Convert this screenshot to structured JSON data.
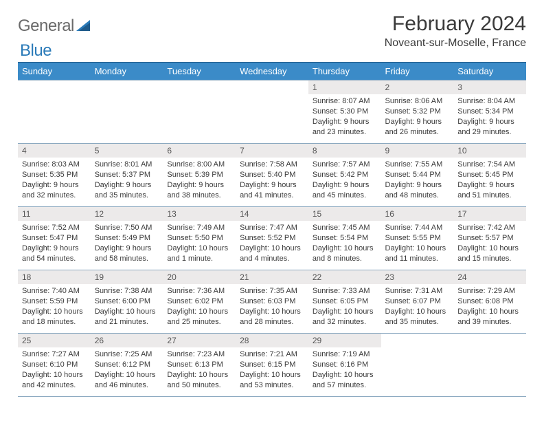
{
  "logo": {
    "word1": "General",
    "word2": "Blue"
  },
  "title": "February 2024",
  "location": "Noveant-sur-Moselle, France",
  "colors": {
    "header_bg": "#3b8bc8",
    "header_border": "#1f5a8a",
    "cell_border": "#8aa8c0",
    "daynum_bg": "#eceaea",
    "logo_gray": "#6a6a6a",
    "logo_blue": "#2a7ab8"
  },
  "weekdays": [
    "Sunday",
    "Monday",
    "Tuesday",
    "Wednesday",
    "Thursday",
    "Friday",
    "Saturday"
  ],
  "weeks": [
    [
      null,
      null,
      null,
      null,
      {
        "n": "1",
        "sr": "8:07 AM",
        "ss": "5:30 PM",
        "dl": "9 hours and 23 minutes."
      },
      {
        "n": "2",
        "sr": "8:06 AM",
        "ss": "5:32 PM",
        "dl": "9 hours and 26 minutes."
      },
      {
        "n": "3",
        "sr": "8:04 AM",
        "ss": "5:34 PM",
        "dl": "9 hours and 29 minutes."
      }
    ],
    [
      {
        "n": "4",
        "sr": "8:03 AM",
        "ss": "5:35 PM",
        "dl": "9 hours and 32 minutes."
      },
      {
        "n": "5",
        "sr": "8:01 AM",
        "ss": "5:37 PM",
        "dl": "9 hours and 35 minutes."
      },
      {
        "n": "6",
        "sr": "8:00 AM",
        "ss": "5:39 PM",
        "dl": "9 hours and 38 minutes."
      },
      {
        "n": "7",
        "sr": "7:58 AM",
        "ss": "5:40 PM",
        "dl": "9 hours and 41 minutes."
      },
      {
        "n": "8",
        "sr": "7:57 AM",
        "ss": "5:42 PM",
        "dl": "9 hours and 45 minutes."
      },
      {
        "n": "9",
        "sr": "7:55 AM",
        "ss": "5:44 PM",
        "dl": "9 hours and 48 minutes."
      },
      {
        "n": "10",
        "sr": "7:54 AM",
        "ss": "5:45 PM",
        "dl": "9 hours and 51 minutes."
      }
    ],
    [
      {
        "n": "11",
        "sr": "7:52 AM",
        "ss": "5:47 PM",
        "dl": "9 hours and 54 minutes."
      },
      {
        "n": "12",
        "sr": "7:50 AM",
        "ss": "5:49 PM",
        "dl": "9 hours and 58 minutes."
      },
      {
        "n": "13",
        "sr": "7:49 AM",
        "ss": "5:50 PM",
        "dl": "10 hours and 1 minute."
      },
      {
        "n": "14",
        "sr": "7:47 AM",
        "ss": "5:52 PM",
        "dl": "10 hours and 4 minutes."
      },
      {
        "n": "15",
        "sr": "7:45 AM",
        "ss": "5:54 PM",
        "dl": "10 hours and 8 minutes."
      },
      {
        "n": "16",
        "sr": "7:44 AM",
        "ss": "5:55 PM",
        "dl": "10 hours and 11 minutes."
      },
      {
        "n": "17",
        "sr": "7:42 AM",
        "ss": "5:57 PM",
        "dl": "10 hours and 15 minutes."
      }
    ],
    [
      {
        "n": "18",
        "sr": "7:40 AM",
        "ss": "5:59 PM",
        "dl": "10 hours and 18 minutes."
      },
      {
        "n": "19",
        "sr": "7:38 AM",
        "ss": "6:00 PM",
        "dl": "10 hours and 21 minutes."
      },
      {
        "n": "20",
        "sr": "7:36 AM",
        "ss": "6:02 PM",
        "dl": "10 hours and 25 minutes."
      },
      {
        "n": "21",
        "sr": "7:35 AM",
        "ss": "6:03 PM",
        "dl": "10 hours and 28 minutes."
      },
      {
        "n": "22",
        "sr": "7:33 AM",
        "ss": "6:05 PM",
        "dl": "10 hours and 32 minutes."
      },
      {
        "n": "23",
        "sr": "7:31 AM",
        "ss": "6:07 PM",
        "dl": "10 hours and 35 minutes."
      },
      {
        "n": "24",
        "sr": "7:29 AM",
        "ss": "6:08 PM",
        "dl": "10 hours and 39 minutes."
      }
    ],
    [
      {
        "n": "25",
        "sr": "7:27 AM",
        "ss": "6:10 PM",
        "dl": "10 hours and 42 minutes."
      },
      {
        "n": "26",
        "sr": "7:25 AM",
        "ss": "6:12 PM",
        "dl": "10 hours and 46 minutes."
      },
      {
        "n": "27",
        "sr": "7:23 AM",
        "ss": "6:13 PM",
        "dl": "10 hours and 50 minutes."
      },
      {
        "n": "28",
        "sr": "7:21 AM",
        "ss": "6:15 PM",
        "dl": "10 hours and 53 minutes."
      },
      {
        "n": "29",
        "sr": "7:19 AM",
        "ss": "6:16 PM",
        "dl": "10 hours and 57 minutes."
      },
      null,
      null
    ]
  ],
  "labels": {
    "sunrise": "Sunrise: ",
    "sunset": "Sunset: ",
    "daylight": "Daylight: "
  }
}
